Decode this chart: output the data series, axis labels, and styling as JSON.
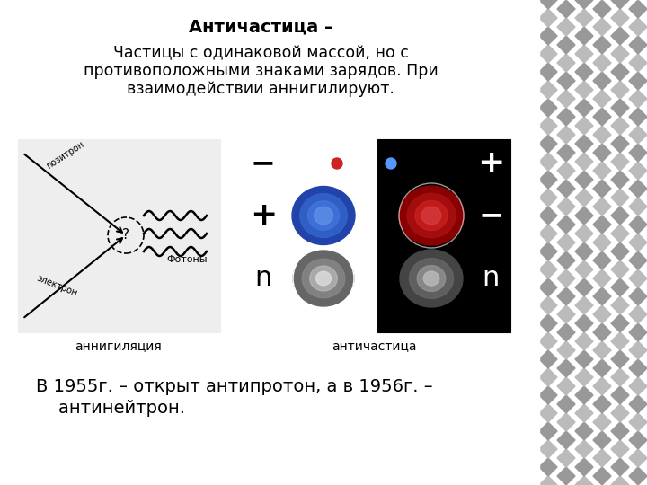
{
  "title_bold": "Античастица",
  "title_dash": " –",
  "body_line1": "Частицы с одинаковой массой, но с",
  "body_line2": "противоположными знаками зарядов. При",
  "body_line3": "взаимодействии аннигилируют.",
  "caption_left": "аннигиляция",
  "caption_right": "античастица",
  "bottom_line1": "В 1955г. – открыт антипротон, а в 1956г. –",
  "bottom_line2": "    антинейтрон.",
  "label_positron": "позитрон",
  "label_electron": "электрон",
  "label_photon": "Фотоны",
  "white_bg": "#ffffff",
  "slide_right_bg": "#888888",
  "diamond_light": "#aaaaaa",
  "diamond_dark": "#777777",
  "ann_box_bg": "#e8e8e8",
  "ann_box_border": "#999999"
}
